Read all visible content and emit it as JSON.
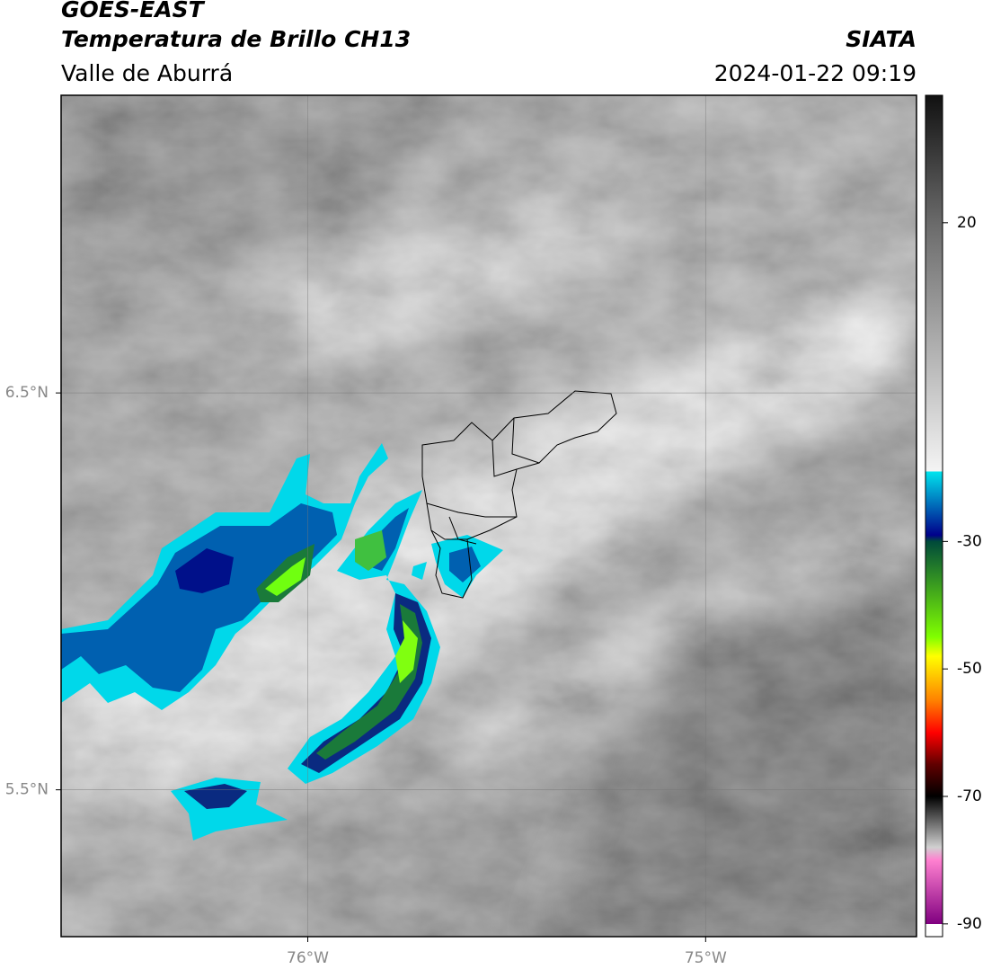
{
  "header": {
    "title": "GOES-EAST",
    "subtitle": "Temperatura de Brillo CH13",
    "region": "Valle de Aburrá",
    "source": "SIATA",
    "datetime": "2024-01-22 09:19"
  },
  "map": {
    "xlim": [
      -76.62,
      -74.47
    ],
    "ylim": [
      5.13,
      7.25
    ],
    "xticks": [
      {
        "value": -76,
        "label": "76°W"
      },
      {
        "value": -75,
        "label": "75°W"
      }
    ],
    "yticks": [
      {
        "value": 6.5,
        "label": "6.5°N"
      },
      {
        "value": 5.5,
        "label": "5.5°N"
      }
    ],
    "grid": true
  },
  "colorbar": {
    "lim": [
      -92,
      40
    ],
    "ticks": [
      20,
      -30,
      -50,
      -70,
      -90
    ],
    "stops": [
      {
        "value": 40,
        "color": "#111111"
      },
      {
        "value": 20,
        "color": "#6a6a6a"
      },
      {
        "value": -19,
        "color": "#f4f4f4"
      },
      {
        "value": -19,
        "color": "#00e5ee"
      },
      {
        "value": -29,
        "color": "#00008b"
      },
      {
        "value": -30,
        "color": "#004a3a"
      },
      {
        "value": -45,
        "color": "#80ff00"
      },
      {
        "value": -48,
        "color": "#ffff00"
      },
      {
        "value": -55,
        "color": "#ff8000"
      },
      {
        "value": -60,
        "color": "#ff0000"
      },
      {
        "value": -65,
        "color": "#600000"
      },
      {
        "value": -70,
        "color": "#000000"
      },
      {
        "value": -78,
        "color": "#d0d0d0"
      },
      {
        "value": -80,
        "color": "#ff80d0"
      },
      {
        "value": -90,
        "color": "#800080"
      },
      {
        "value": -90,
        "color": "#ffffff"
      },
      {
        "value": -92,
        "color": "#ffffff"
      }
    ]
  }
}
